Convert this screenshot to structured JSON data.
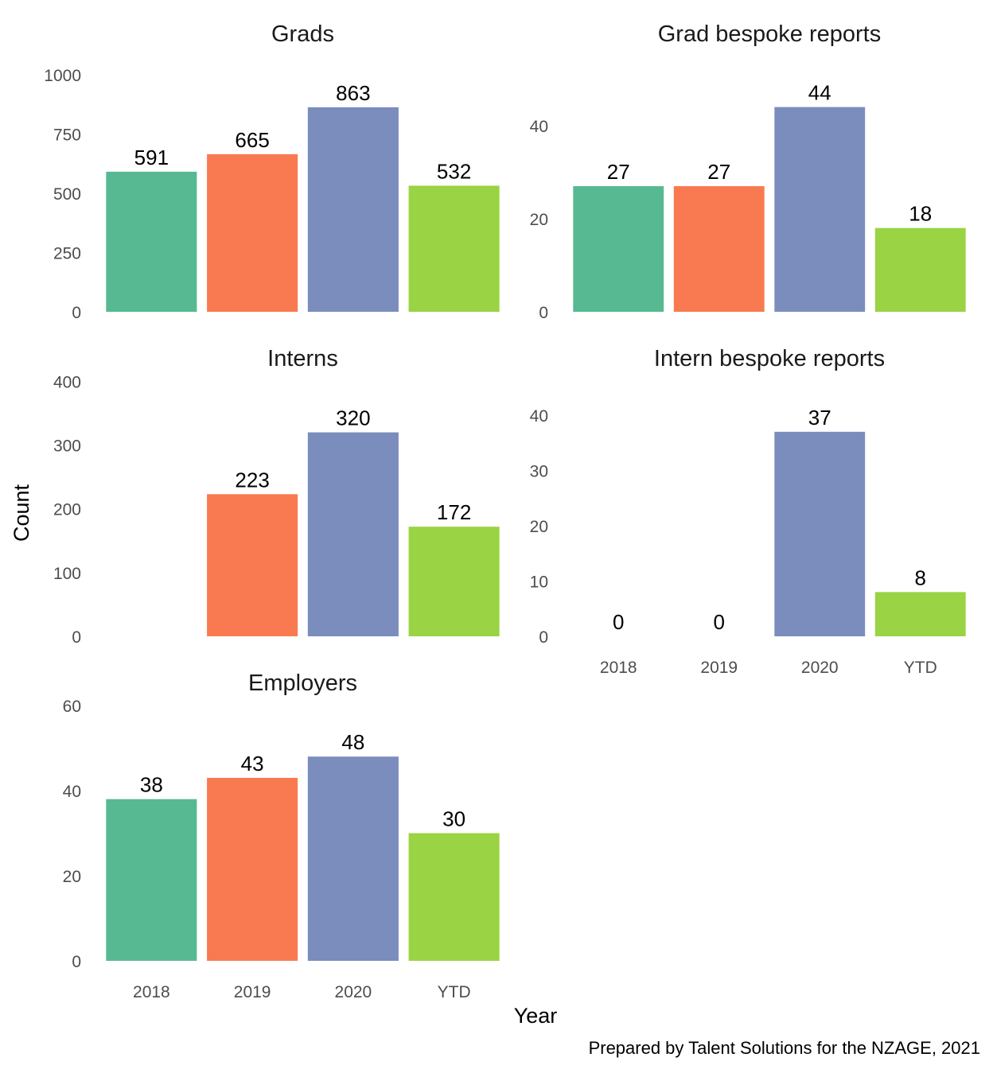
{
  "chart_data": {
    "type": "bar",
    "xlabel": "Year",
    "ylabel": "Count",
    "caption": "Prepared by Talent Solutions for the NZAGE, 2021",
    "categories": [
      "2018",
      "2019",
      "2020",
      "YTD"
    ],
    "colors": [
      "#57b991",
      "#f97a50",
      "#7b8dbd",
      "#9ad343"
    ],
    "grid": false,
    "legend": "none",
    "panels": [
      {
        "title": "Grads",
        "values": [
          591,
          665,
          863,
          532
        ],
        "ylim": [
          0,
          1000
        ],
        "yticks": [
          0,
          250,
          500,
          750,
          1000
        ],
        "show_x_labels": false
      },
      {
        "title": "Grad bespoke reports",
        "values": [
          27,
          27,
          44,
          18
        ],
        "ylim": [
          0,
          44
        ],
        "yticks": [
          0,
          20,
          40
        ],
        "show_x_labels": false
      },
      {
        "title": "Interns",
        "values": [
          null,
          223,
          320,
          172
        ],
        "ylim": [
          0,
          400
        ],
        "yticks": [
          0,
          100,
          200,
          300,
          400
        ],
        "show_x_labels": false
      },
      {
        "title": "Intern bespoke reports",
        "values": [
          0,
          0,
          37,
          8
        ],
        "ylim": [
          0,
          40
        ],
        "yticks": [
          0,
          10,
          20,
          30,
          40
        ],
        "show_x_labels": true
      },
      {
        "title": "Employers",
        "values": [
          38,
          43,
          48,
          30
        ],
        "ylim": [
          0,
          60
        ],
        "yticks": [
          0,
          20,
          40,
          60
        ],
        "show_x_labels": true
      }
    ]
  }
}
